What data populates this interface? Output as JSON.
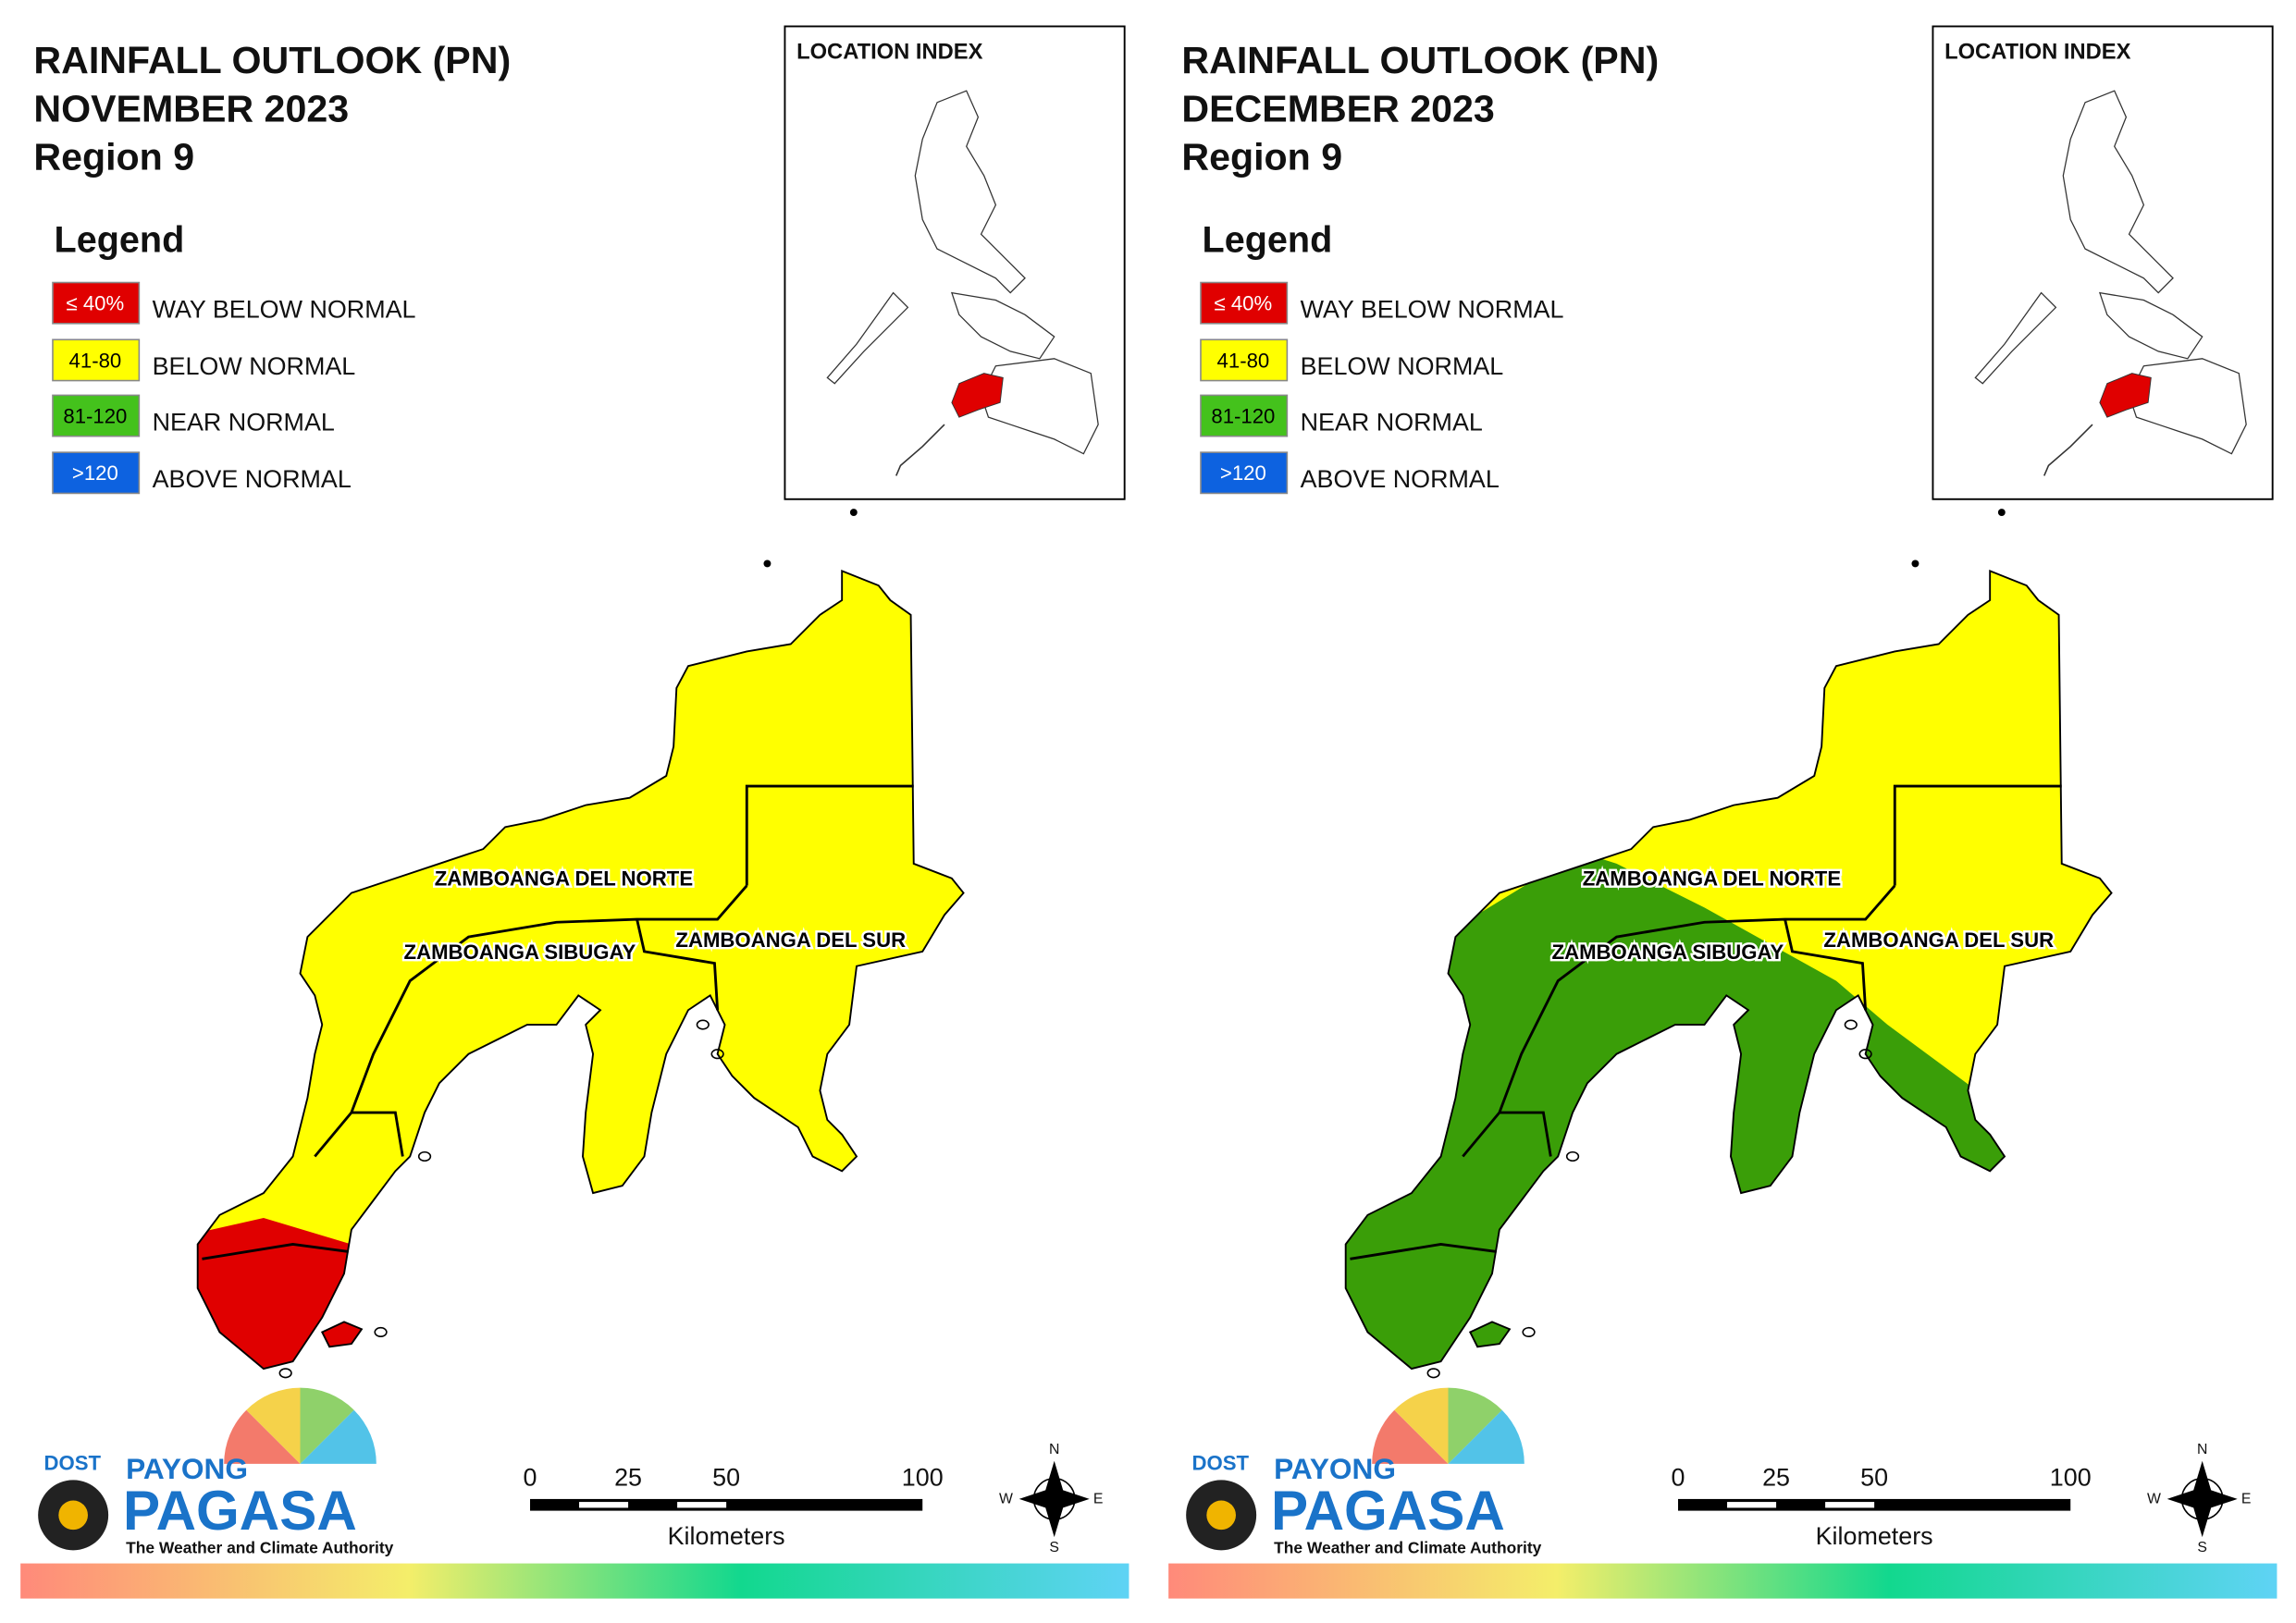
{
  "panels": [
    {
      "title": [
        "RAINFALL OUTLOOK (PN)",
        "NOVEMBER 2023",
        "Region 9"
      ],
      "legend_title": "Legend",
      "legend": [
        {
          "code": "≤ 40%",
          "label": "WAY BELOW NORMAL",
          "color": "#e00000"
        },
        {
          "code": "41-80",
          "label": "BELOW NORMAL",
          "color": "#ffff00"
        },
        {
          "code": "81-120",
          "label": "NEAR NORMAL",
          "color": "#44c21c"
        },
        {
          "code": ">120",
          "label": "ABOVE NORMAL",
          "color": "#0d62e0"
        }
      ],
      "index_title": "LOCATION INDEX",
      "provinces": [
        "ZAMBOANGA DEL NORTE",
        "ZAMBOANGA SIBUGAY",
        "ZAMBOANGA DEL SUR"
      ],
      "scale_km": [
        0,
        25,
        50,
        100
      ],
      "scale_unit": "Kilometers",
      "compass": [
        "N",
        "E",
        "S",
        "W"
      ],
      "logo": {
        "agency": "DOST",
        "brand1": "PAYONG",
        "brand2": "PAGASA",
        "tagline": "The Weather and Climate Authority"
      }
    },
    {
      "title": [
        "RAINFALL OUTLOOK (PN)",
        "DECEMBER 2023",
        "Region 9"
      ],
      "legend_title": "Legend",
      "legend": [
        {
          "code": "≤ 40%",
          "label": "WAY BELOW NORMAL",
          "color": "#e00000"
        },
        {
          "code": "41-80",
          "label": "BELOW NORMAL",
          "color": "#ffff00"
        },
        {
          "code": "81-120",
          "label": "NEAR NORMAL",
          "color": "#44c21c"
        },
        {
          "code": ">120",
          "label": "ABOVE NORMAL",
          "color": "#0d62e0"
        }
      ],
      "index_title": "LOCATION INDEX",
      "provinces": [
        "ZAMBOANGA DEL NORTE",
        "ZAMBOANGA SIBUGAY",
        "ZAMBOANGA DEL SUR"
      ],
      "scale_km": [
        0,
        25,
        50,
        100
      ],
      "scale_unit": "Kilometers",
      "compass": [
        "N",
        "E",
        "S",
        "W"
      ],
      "logo": {
        "agency": "DOST",
        "brand1": "PAYONG",
        "brand2": "PAGASA",
        "tagline": "The Weather and Climate Authority"
      }
    }
  ]
}
